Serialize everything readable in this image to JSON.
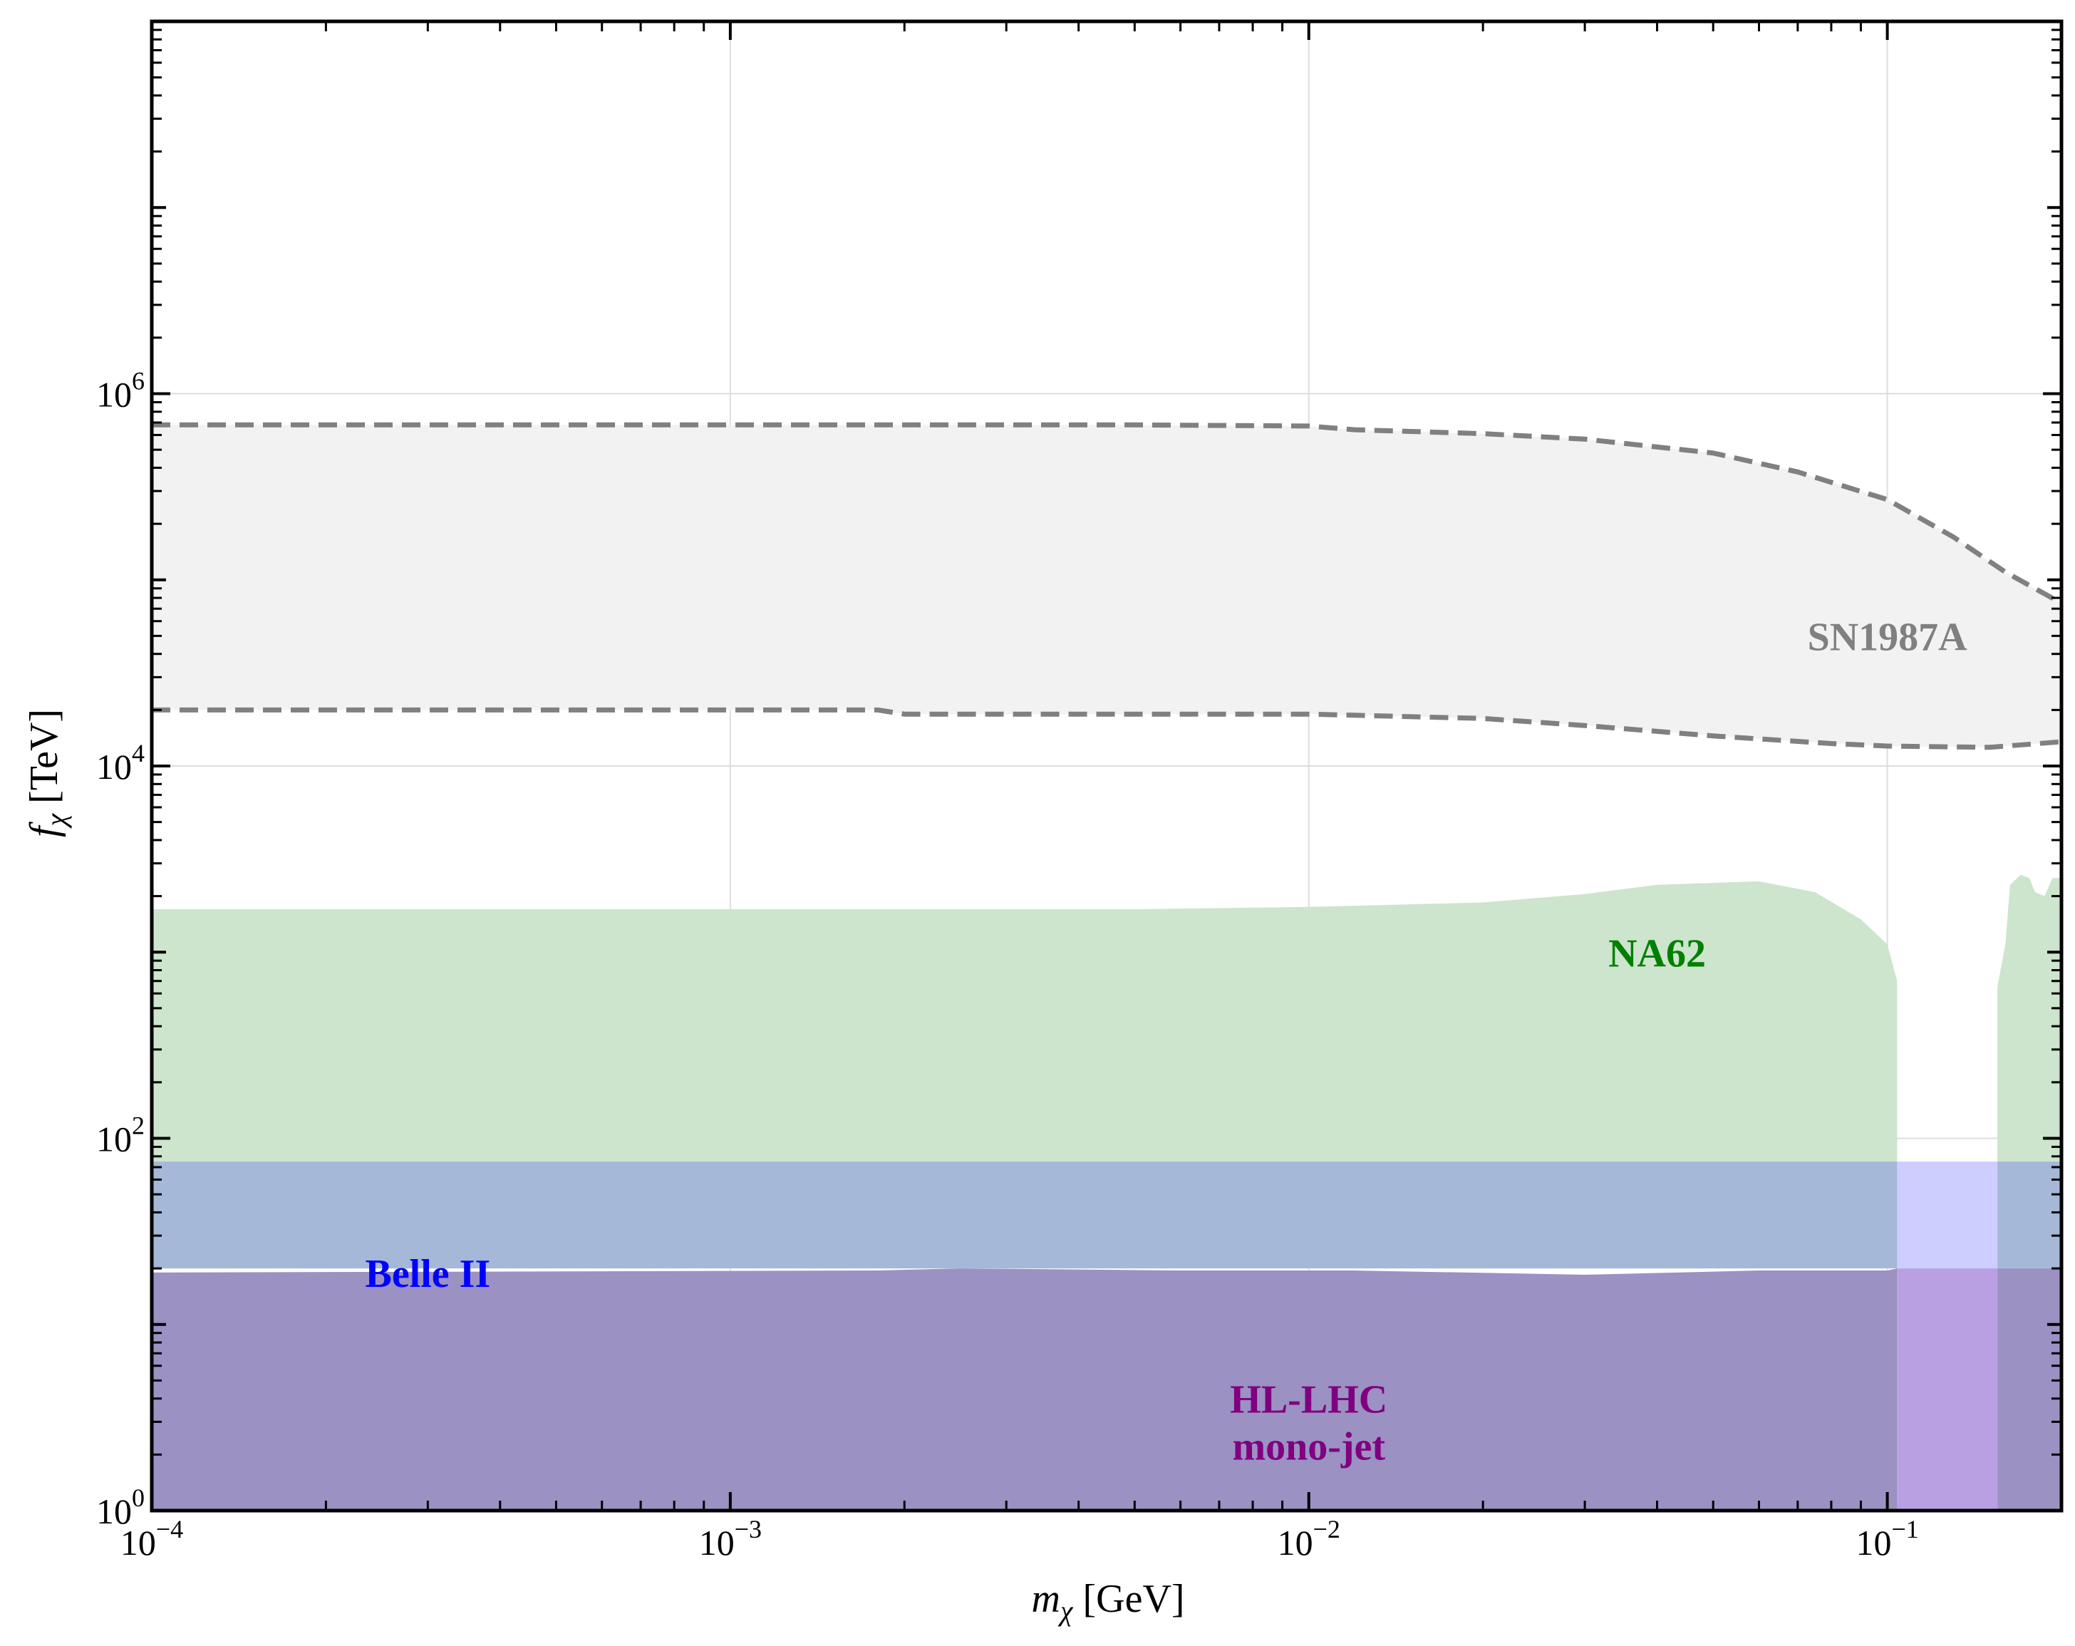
{
  "chart_data": {
    "type": "area",
    "xlabel": {
      "italic": "m",
      "sub": "χ",
      "unit": " [GeV]"
    },
    "ylabel": {
      "italic": "f",
      "sub": "χ",
      "unit": " [TeV]"
    },
    "xscale": "log",
    "yscale": "log",
    "xlim": [
      0.0001,
      0.2
    ],
    "ylim": [
      1,
      100000000
    ],
    "grid": true,
    "x_ticks": [
      {
        "base": "10",
        "exp": "−4",
        "value": 0.0001
      },
      {
        "base": "10",
        "exp": "−3",
        "value": 0.001
      },
      {
        "base": "10",
        "exp": "−2",
        "value": 0.01
      },
      {
        "base": "10",
        "exp": "−1",
        "value": 0.1
      }
    ],
    "y_ticks": [
      {
        "base": "10",
        "exp": "0",
        "value": 1
      },
      {
        "base": "10",
        "exp": "2",
        "value": 100
      },
      {
        "base": "10",
        "exp": "4",
        "value": 10000
      },
      {
        "base": "10",
        "exp": "6",
        "value": 1000000
      }
    ],
    "regions": [
      {
        "name": "SN1987A",
        "fill": "#f2f2f2",
        "line_color": "#808080",
        "line_style": "dashed",
        "label": "SN1987A",
        "label_color": "#808080",
        "label_pos": [
          0.1,
          50000
        ],
        "upper": [
          [
            0.0001,
            680000
          ],
          [
            0.002,
            680000
          ],
          [
            0.005,
            680000
          ],
          [
            0.01,
            670000
          ],
          [
            0.012,
            640000
          ],
          [
            0.02,
            610000
          ],
          [
            0.03,
            570000
          ],
          [
            0.05,
            480000
          ],
          [
            0.07,
            380000
          ],
          [
            0.1,
            270000
          ],
          [
            0.13,
            170000
          ],
          [
            0.16,
            110000
          ],
          [
            0.2,
            75000
          ]
        ],
        "lower": [
          [
            0.0001,
            20000
          ],
          [
            0.0018,
            20000
          ],
          [
            0.002,
            19000
          ],
          [
            0.01,
            19000
          ],
          [
            0.02,
            18000
          ],
          [
            0.03,
            16500
          ],
          [
            0.05,
            14500
          ],
          [
            0.08,
            13200
          ],
          [
            0.1,
            12800
          ],
          [
            0.15,
            12600
          ],
          [
            0.2,
            13500
          ]
        ]
      },
      {
        "name": "NA62",
        "fill": "#cde4cd",
        "label": "NA62",
        "label_color": "#008000",
        "label_pos": [
          0.04,
          1000
        ],
        "outline": [
          [
            0.0001,
            1700
          ],
          [
            0.005,
            1700
          ],
          [
            0.01,
            1750
          ],
          [
            0.02,
            1850
          ],
          [
            0.03,
            2050
          ],
          [
            0.04,
            2300
          ],
          [
            0.06,
            2400
          ],
          [
            0.075,
            2100
          ],
          [
            0.09,
            1500
          ],
          [
            0.1,
            1100
          ],
          [
            0.104,
            700
          ],
          [
            0.104,
            75
          ],
          [
            0.155,
            75
          ],
          [
            0.155,
            650
          ],
          [
            0.16,
            1100
          ],
          [
            0.163,
            2300
          ],
          [
            0.17,
            2600
          ],
          [
            0.176,
            2500
          ],
          [
            0.18,
            2100
          ],
          [
            0.187,
            2000
          ],
          [
            0.193,
            2500
          ],
          [
            0.2,
            2500
          ],
          [
            0.2,
            75
          ],
          [
            0.0001,
            75
          ]
        ]
      },
      {
        "name": "Belle II",
        "fill": "#a5b8d7",
        "label": "Belle II",
        "label_color": "#0000ff",
        "label_pos": [
          0.0003,
          19
        ],
        "outline": [
          [
            0.0001,
            75
          ],
          [
            0.104,
            75
          ],
          [
            0.104,
            20
          ],
          [
            0.0001,
            20
          ]
        ]
      },
      {
        "name": "Belle II gap",
        "fill": "#cdcdfe",
        "outline": [
          [
            0.104,
            75
          ],
          [
            0.155,
            75
          ],
          [
            0.155,
            20
          ],
          [
            0.104,
            20
          ]
        ]
      },
      {
        "name": "Belle II right",
        "fill": "#a5b8d7",
        "outline": [
          [
            0.155,
            75
          ],
          [
            0.2,
            75
          ],
          [
            0.2,
            20
          ],
          [
            0.155,
            20
          ]
        ]
      },
      {
        "name": "HL-LHC mono-jet",
        "fill": "#9b91c3",
        "label": [
          "HL-LHC",
          "mono-jet"
        ],
        "label_color": "#800080",
        "label_pos": [
          0.01,
          3
        ],
        "outline": [
          [
            0.0001,
            19
          ],
          [
            0.0018,
            19.5
          ],
          [
            0.0025,
            20
          ],
          [
            0.006,
            19.5
          ],
          [
            0.012,
            19.5
          ],
          [
            0.03,
            18.5
          ],
          [
            0.06,
            19.5
          ],
          [
            0.1,
            19.5
          ],
          [
            0.104,
            20
          ],
          [
            0.104,
            1
          ],
          [
            0.0001,
            1
          ]
        ]
      },
      {
        "name": "HL-LHC gap",
        "fill": "#b9a0e3",
        "outline": [
          [
            0.104,
            20
          ],
          [
            0.155,
            20
          ],
          [
            0.155,
            1
          ],
          [
            0.104,
            1
          ]
        ]
      },
      {
        "name": "HL-LHC right",
        "fill": "#9b91c3",
        "outline": [
          [
            0.155,
            20
          ],
          [
            0.2,
            20
          ],
          [
            0.2,
            1
          ],
          [
            0.155,
            1
          ]
        ]
      }
    ]
  }
}
